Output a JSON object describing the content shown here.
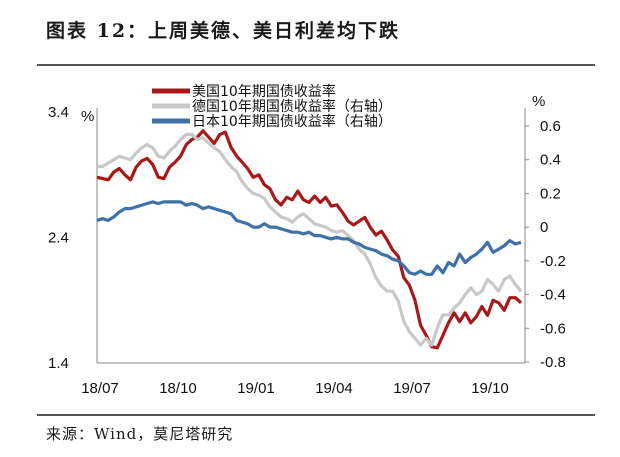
{
  "figure": {
    "title": "图表 12：上周美德、美日利差均下跌",
    "source": "来源：Wind，莫尼塔研究"
  },
  "chart_data": {
    "type": "line",
    "x_ticks": [
      "18/07",
      "18/10",
      "19/01",
      "19/04",
      "19/07",
      "19/10"
    ],
    "y_left": {
      "unit": "%",
      "ticks": [
        "3.4",
        "2.4",
        "1.4"
      ],
      "range": [
        1.4,
        3.4
      ]
    },
    "y_right": {
      "unit": "%",
      "ticks": [
        "0.6",
        "0.4",
        "0.2",
        "0",
        "-0.2",
        "-0.4",
        "-0.6",
        "-0.8"
      ],
      "range": [
        -0.8,
        0.7
      ]
    },
    "series": [
      {
        "name": "美国10年期国债收益率",
        "axis": "left",
        "color": "#a81818",
        "values": [
          2.88,
          2.87,
          2.86,
          2.92,
          2.95,
          2.9,
          2.86,
          2.96,
          3.01,
          3.03,
          2.98,
          2.88,
          2.87,
          2.96,
          3.0,
          3.05,
          3.14,
          3.18,
          3.2,
          3.25,
          3.2,
          3.15,
          3.22,
          3.24,
          3.12,
          3.05,
          3.0,
          2.95,
          2.88,
          2.9,
          2.82,
          2.79,
          2.7,
          2.66,
          2.72,
          2.7,
          2.77,
          2.7,
          2.68,
          2.73,
          2.68,
          2.72,
          2.65,
          2.66,
          2.6,
          2.53,
          2.5,
          2.53,
          2.56,
          2.48,
          2.42,
          2.45,
          2.38,
          2.3,
          2.25,
          2.08,
          2.02,
          1.9,
          1.7,
          1.62,
          1.53,
          1.52,
          1.62,
          1.72,
          1.8,
          1.73,
          1.8,
          1.72,
          1.77,
          1.85,
          1.78,
          1.9,
          1.88,
          1.82,
          1.92,
          1.92,
          1.88
        ]
      },
      {
        "name": "德国10年期国债收益率（右轴）",
        "axis": "right",
        "color": "#c8c8c8",
        "values": [
          0.36,
          0.36,
          0.38,
          0.4,
          0.42,
          0.41,
          0.4,
          0.44,
          0.47,
          0.49,
          0.47,
          0.42,
          0.41,
          0.45,
          0.48,
          0.52,
          0.55,
          0.55,
          0.52,
          0.53,
          0.5,
          0.47,
          0.45,
          0.4,
          0.36,
          0.33,
          0.27,
          0.23,
          0.2,
          0.19,
          0.17,
          0.12,
          0.09,
          0.06,
          0.05,
          0.03,
          0.06,
          0.08,
          0.05,
          0.02,
          0.01,
          0.0,
          -0.02,
          -0.03,
          -0.02,
          -0.05,
          -0.08,
          -0.13,
          -0.16,
          -0.22,
          -0.3,
          -0.35,
          -0.38,
          -0.38,
          -0.44,
          -0.56,
          -0.62,
          -0.66,
          -0.7,
          -0.66,
          -0.7,
          -0.6,
          -0.52,
          -0.52,
          -0.48,
          -0.45,
          -0.4,
          -0.36,
          -0.4,
          -0.38,
          -0.31,
          -0.34,
          -0.38,
          -0.31,
          -0.29,
          -0.34,
          -0.38
        ]
      },
      {
        "name": "日本10年期国债收益率（右轴）",
        "axis": "right",
        "color": "#3f70a8",
        "values": [
          0.04,
          0.05,
          0.04,
          0.06,
          0.09,
          0.11,
          0.11,
          0.12,
          0.13,
          0.14,
          0.15,
          0.14,
          0.15,
          0.15,
          0.15,
          0.15,
          0.13,
          0.14,
          0.13,
          0.11,
          0.12,
          0.11,
          0.1,
          0.09,
          0.08,
          0.04,
          0.03,
          0.02,
          0.0,
          0.0,
          0.02,
          0.0,
          0.0,
          -0.01,
          -0.02,
          -0.03,
          -0.03,
          -0.04,
          -0.03,
          -0.05,
          -0.05,
          -0.06,
          -0.07,
          -0.06,
          -0.07,
          -0.07,
          -0.09,
          -0.1,
          -0.12,
          -0.13,
          -0.14,
          -0.16,
          -0.17,
          -0.19,
          -0.2,
          -0.23,
          -0.27,
          -0.28,
          -0.26,
          -0.28,
          -0.28,
          -0.23,
          -0.27,
          -0.21,
          -0.23,
          -0.16,
          -0.21,
          -0.18,
          -0.16,
          -0.13,
          -0.09,
          -0.15,
          -0.13,
          -0.11,
          -0.08,
          -0.1,
          -0.09
        ]
      }
    ]
  }
}
